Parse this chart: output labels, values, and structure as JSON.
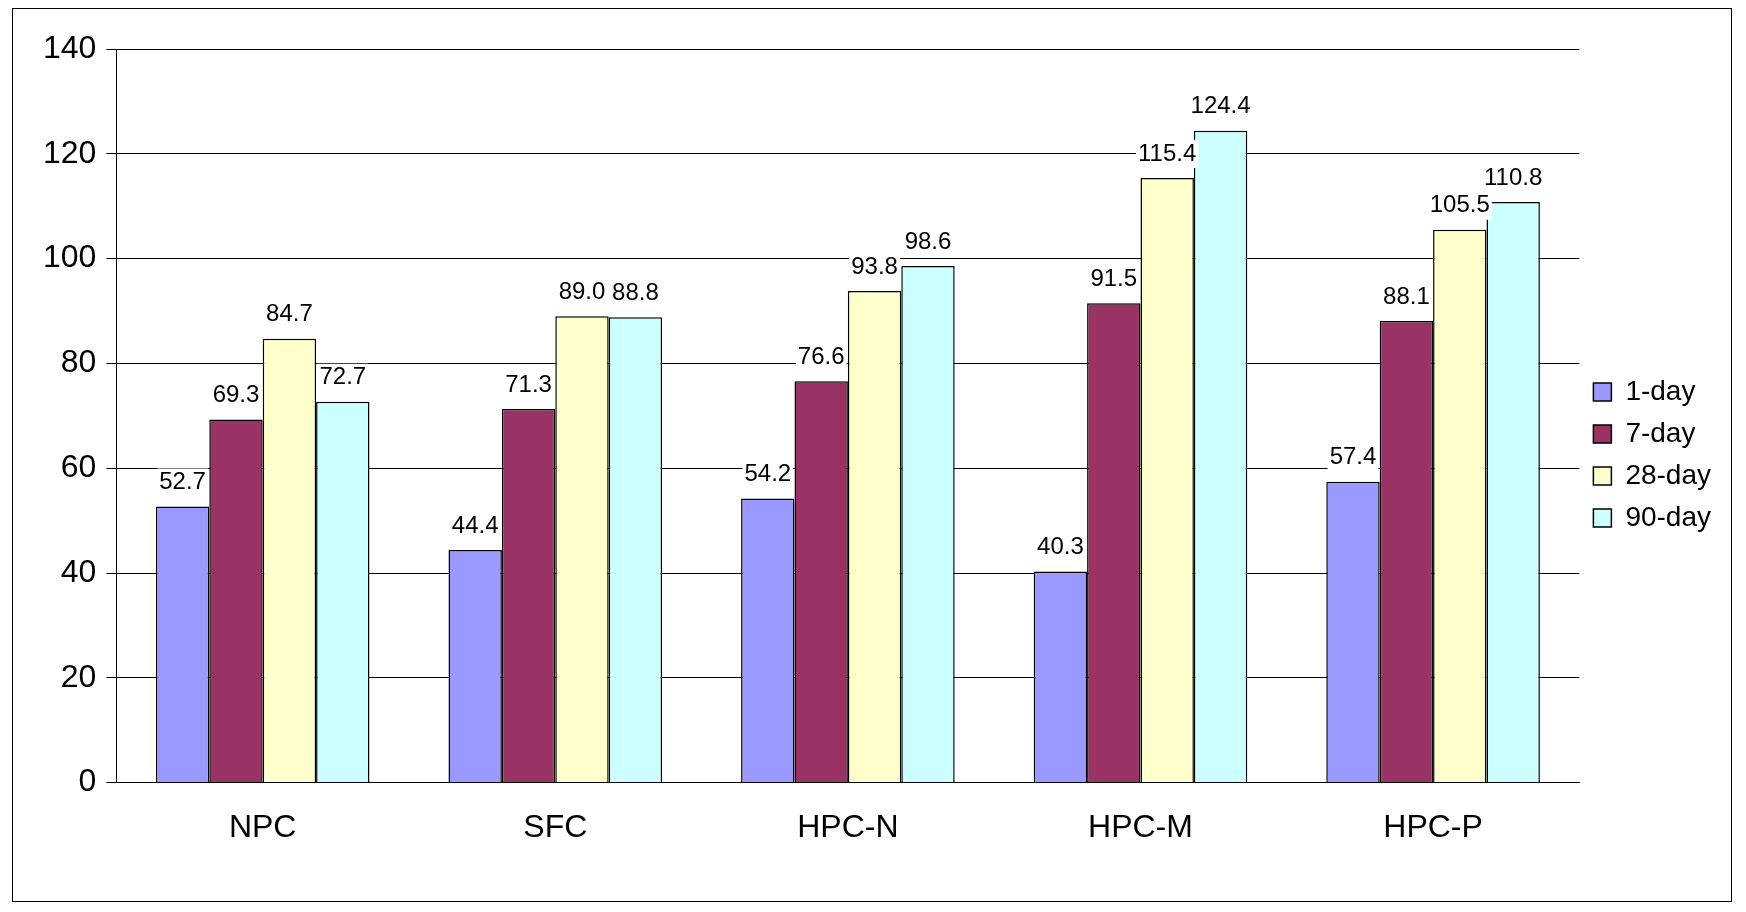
{
  "chart_data": {
    "type": "bar",
    "categories": [
      "NPC",
      "SFC",
      "HPC-N",
      "HPC-M",
      "HPC-P"
    ],
    "series": [
      {
        "name": "1-day",
        "color": "#9999ff",
        "values": [
          52.7,
          44.4,
          54.2,
          40.3,
          57.4
        ]
      },
      {
        "name": "7-day",
        "color": "#993366",
        "values": [
          69.3,
          71.3,
          76.6,
          91.5,
          88.1
        ]
      },
      {
        "name": "28-day",
        "color": "#ffffcc",
        "values": [
          84.7,
          89.0,
          93.8,
          115.4,
          105.5
        ]
      },
      {
        "name": "90-day",
        "color": "#ccffff",
        "values": [
          72.7,
          88.8,
          98.6,
          124.4,
          110.8
        ]
      }
    ],
    "value_labels": [
      [
        "52.7",
        "44.4",
        "54.2",
        "40.3",
        "57.4"
      ],
      [
        "69.3",
        "71.3",
        "76.6",
        "91.5",
        "88.1"
      ],
      [
        "84.7",
        "89.0",
        "93.8",
        "115.4",
        "105.5"
      ],
      [
        "72.7",
        "88.8",
        "98.6",
        "124.4",
        "110.8"
      ]
    ],
    "ylim": [
      0,
      140
    ],
    "yticks": [
      0,
      20,
      40,
      60,
      80,
      100,
      120,
      140
    ],
    "grid": "y",
    "legend": "right"
  }
}
